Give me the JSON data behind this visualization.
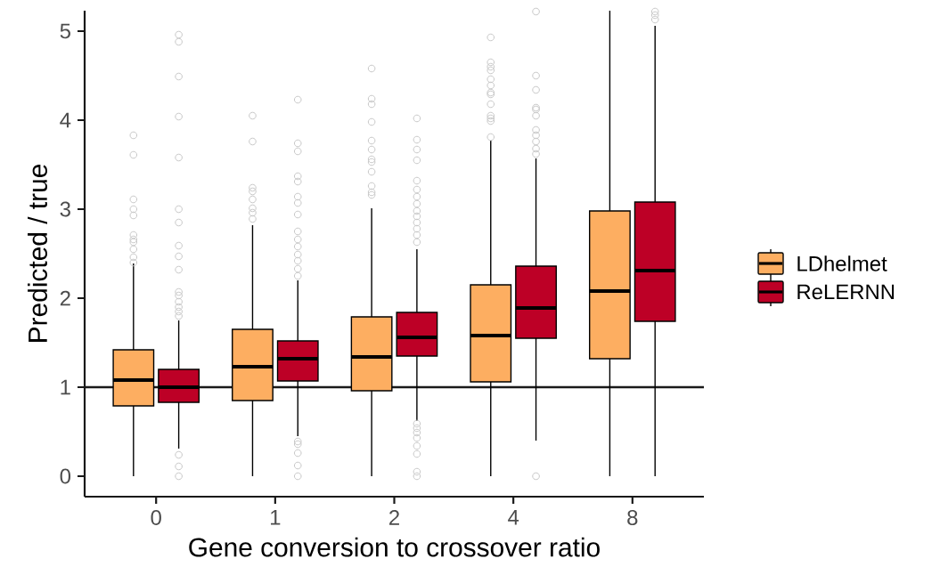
{
  "chart_data": {
    "type": "box",
    "xlabel": "Gene conversion to crossover ratio",
    "ylabel": "Predicted / true",
    "categories": [
      "0",
      "1",
      "2",
      "4",
      "8"
    ],
    "series": [
      {
        "name": "LDhelmet",
        "color": "#fdae61",
        "boxes": [
          {
            "low": 0,
            "q1": 0.79,
            "median": 1.08,
            "q3": 1.42,
            "high": 2.39,
            "outliers": [
              3.83,
              3.61,
              3.11,
              3.0,
              2.93,
              2.71,
              2.66,
              2.63,
              2.55,
              2.46,
              2.4
            ]
          },
          {
            "low": 0,
            "q1": 0.85,
            "median": 1.23,
            "q3": 1.65,
            "high": 2.82,
            "outliers": [
              4.05,
              3.76,
              3.24,
              3.2,
              3.11,
              3.01,
              2.96,
              2.89
            ]
          },
          {
            "low": 0,
            "q1": 0.96,
            "median": 1.34,
            "q3": 1.79,
            "high": 3.01,
            "outliers": [
              4.58,
              4.24,
              4.18,
              3.98,
              3.77,
              3.67,
              3.56,
              3.53,
              3.42,
              3.26,
              3.19,
              3.16
            ]
          },
          {
            "low": 0,
            "q1": 1.06,
            "median": 1.58,
            "q3": 2.15,
            "high": 3.77,
            "outliers": [
              4.93,
              4.65,
              4.6,
              4.56,
              4.46,
              4.39,
              4.31,
              4.29,
              4.18,
              4.05,
              4.02,
              3.99,
              3.81
            ]
          },
          {
            "low": 0,
            "q1": 1.32,
            "median": 2.08,
            "q3": 2.98,
            "high": 5.23
          }
        ]
      },
      {
        "name": "ReLERNN",
        "color": "#bd0026",
        "boxes": [
          {
            "low": 0.31,
            "q1": 0.83,
            "median": 1.0,
            "q3": 1.2,
            "high": 1.75,
            "outliers": [
              4.96,
              4.88,
              4.49,
              4.04,
              3.58,
              3.0,
              2.85,
              2.59,
              2.47,
              2.32,
              2.07,
              2.03,
              1.96,
              1.9,
              1.85,
              1.8,
              0.24,
              0.11,
              0
            ]
          },
          {
            "low": 0.45,
            "q1": 1.07,
            "median": 1.32,
            "q3": 1.52,
            "high": 2.2,
            "outliers": [
              4.23,
              3.74,
              3.65,
              3.37,
              3.31,
              3.14,
              3.07,
              2.94,
              2.75,
              2.66,
              2.58,
              2.49,
              2.42,
              2.33,
              2.25,
              0.39,
              0.36,
              0.26,
              0.12,
              0
            ]
          },
          {
            "low": 0.62,
            "q1": 1.35,
            "median": 1.56,
            "q3": 1.84,
            "high": 2.55,
            "outliers": [
              4.02,
              3.78,
              3.67,
              3.55,
              3.32,
              3.22,
              3.14,
              3.06,
              2.98,
              2.92,
              2.85,
              2.78,
              2.71,
              2.63,
              0.59,
              0.54,
              0.49,
              0.43,
              0.34,
              0.25,
              0.05,
              0
            ]
          },
          {
            "low": 0.4,
            "q1": 1.55,
            "median": 1.89,
            "q3": 2.36,
            "high": 3.57,
            "outliers": [
              5.22,
              4.5,
              4.34,
              4.14,
              4.12,
              4.05,
              3.89,
              3.83,
              3.76,
              3.68,
              3.62,
              0
            ]
          },
          {
            "low": 0,
            "q1": 1.74,
            "median": 2.31,
            "q3": 3.08,
            "high": 5.06,
            "outliers": [
              5.22,
              5.18,
              5.13
            ]
          }
        ]
      }
    ],
    "ylim": [
      -0.23,
      5.23
    ],
    "yticks": [
      0,
      1,
      2,
      3,
      4,
      5
    ],
    "ref_lines": [
      {
        "axis": "y",
        "value": 1,
        "color": "#1a1a1a"
      }
    ],
    "legend": "right",
    "grid": false
  }
}
